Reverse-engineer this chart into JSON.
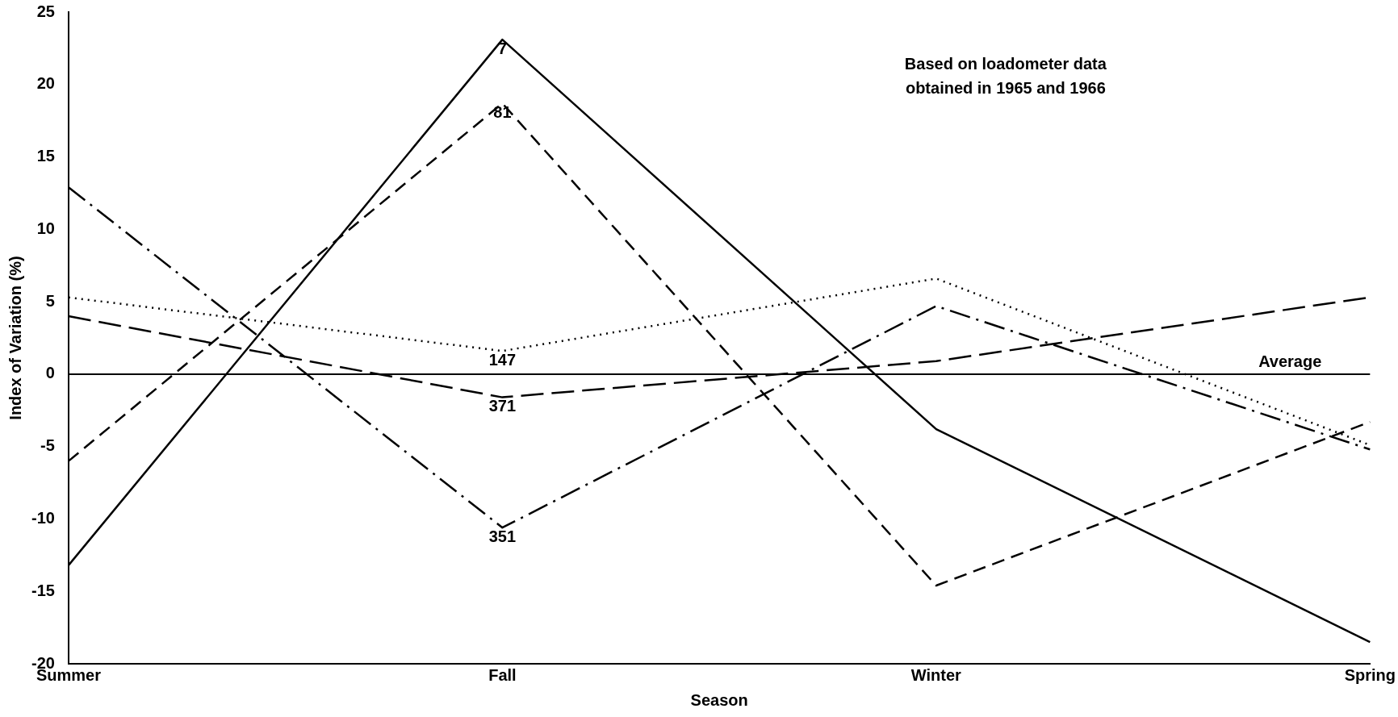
{
  "chart_data": {
    "type": "line",
    "xlabel": "Season",
    "ylabel": "Index of Variation (%)",
    "categories": [
      "Summer",
      "Fall",
      "Winter",
      "Spring"
    ],
    "series": [
      {
        "name": "7",
        "color": "#000000",
        "line_style": "solid",
        "values": [
          -13.2,
          23.1,
          -3.8,
          -18.5
        ]
      },
      {
        "name": "81",
        "color": "#000000",
        "line_style": "dashed",
        "values": [
          -6.0,
          18.7,
          -14.6,
          -3.3
        ]
      },
      {
        "name": "147",
        "color": "#000000",
        "line_style": "dotted",
        "values": [
          5.3,
          1.6,
          6.6,
          -4.9
        ]
      },
      {
        "name": "371",
        "color": "#000000",
        "line_style": "dashed",
        "values": [
          4.0,
          -1.6,
          0.9,
          5.3
        ]
      },
      {
        "name": "351",
        "color": "#000000",
        "line_style": "dashed",
        "values": [
          12.9,
          -10.6,
          4.7,
          -5.2
        ]
      }
    ],
    "ylim": [
      -20,
      25
    ],
    "yticks": [
      -20,
      -15,
      -10,
      -5,
      0,
      5,
      10,
      15,
      20,
      25
    ],
    "ref_lines": [
      {
        "axis": "y",
        "value": 0,
        "label": "Average",
        "color": "#000000"
      }
    ],
    "annotations": [
      "Based on loadometer data\nobtained in 1965 and 1966"
    ],
    "grid": false,
    "legend": false,
    "marker": "none"
  }
}
